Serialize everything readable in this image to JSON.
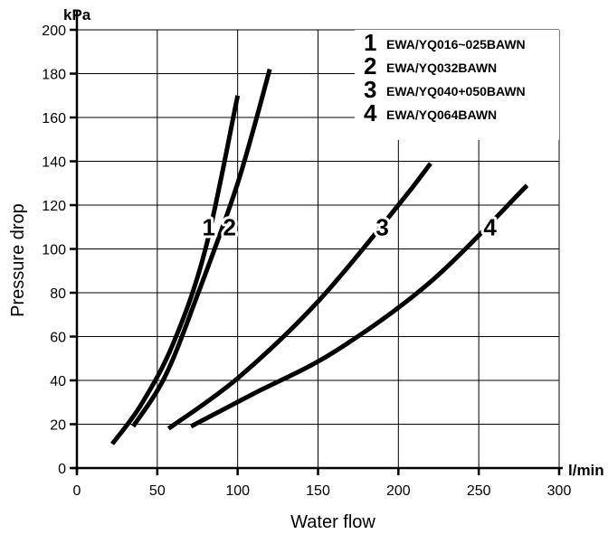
{
  "chart_data": {
    "type": "line",
    "xlabel": "Water flow",
    "ylabel": "Pressure drop",
    "x_unit": "l/min",
    "y_unit": "kPa",
    "xlim": [
      0,
      300
    ],
    "ylim": [
      0,
      200
    ],
    "x_ticks": [
      "0",
      "50",
      "100",
      "150",
      "200",
      "250",
      "300"
    ],
    "y_ticks": [
      "0",
      "20",
      "40",
      "60",
      "80",
      "100",
      "120",
      "140",
      "160",
      "180",
      "200"
    ],
    "grid": true,
    "legend_position": "top-right",
    "legend": [
      {
        "number": "1",
        "model": "EWA/YQ016~025BAWN"
      },
      {
        "number": "2",
        "model": "EWA/YQ032BAWN"
      },
      {
        "number": "3",
        "model": "EWA/YQ040+050BAWN"
      },
      {
        "number": "4",
        "model": "EWA/YQ064BAWN"
      }
    ],
    "series": [
      {
        "name": "1",
        "x": [
          22,
          40,
          60,
          80,
          100
        ],
        "y": [
          11,
          29,
          57,
          100,
          170
        ],
        "label_at": [
          82,
          110
        ]
      },
      {
        "name": "2",
        "x": [
          35,
          55,
          75,
          100,
          120
        ],
        "y": [
          19,
          42,
          79,
          130,
          182
        ],
        "label_at": [
          95,
          110
        ]
      },
      {
        "name": "3",
        "x": [
          57,
          100,
          150,
          200,
          220
        ],
        "y": [
          18,
          41,
          76,
          120,
          139
        ],
        "label_at": [
          190,
          110
        ]
      },
      {
        "name": "4",
        "x": [
          71,
          110,
          160,
          220,
          280
        ],
        "y": [
          19,
          34,
          53,
          85,
          129
        ],
        "label_at": [
          257,
          110
        ]
      }
    ]
  }
}
